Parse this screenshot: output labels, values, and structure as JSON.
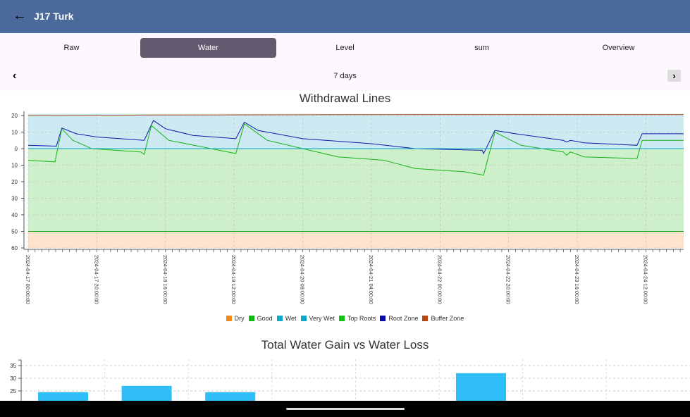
{
  "appbar": {
    "title": "J17 Turk",
    "back_icon": "arrow-left-icon"
  },
  "tabs": [
    {
      "label": "Raw",
      "active": false
    },
    {
      "label": "Water",
      "active": true
    },
    {
      "label": "Level",
      "active": false
    },
    {
      "label": "sum",
      "active": false
    },
    {
      "label": "Overview",
      "active": false
    }
  ],
  "range": {
    "label": "7 days",
    "prev_icon": "chevron-left-icon",
    "next_icon": "chevron-right-icon"
  },
  "chart_data": [
    {
      "type": "line",
      "title": "Withdrawal Lines",
      "x_unit": "hours since 2024-04-17 00:00:00",
      "xlim": [
        0,
        191
      ],
      "ylim": [
        -60,
        21
      ],
      "y_ticks": [
        20,
        10,
        0,
        -10,
        -20,
        -30,
        -40,
        -50,
        -60
      ],
      "y_tick_labels": [
        "20",
        "10",
        "0",
        "10",
        "20",
        "30",
        "40",
        "50",
        "60"
      ],
      "x_tick_labels": [
        "2024-04-17 00:00:00",
        "2024-04-17 20:00:00",
        "2024-04-18 16:00:00",
        "2024-04-19 12:00:00",
        "2024-04-20 08:00:00",
        "2024-04-21 04:00:00",
        "2024-04-22 00:00:00",
        "2024-04-22 20:00:00",
        "2024-04-23 16:00:00",
        "2024-04-24 12:00:00"
      ],
      "x_tick_hours": [
        0,
        20,
        40,
        60,
        80,
        100,
        120,
        140,
        160,
        180
      ],
      "zones": [
        {
          "name": "Dry",
          "from": -60,
          "to": -50,
          "color": "#fde3cc"
        },
        {
          "name": "Good",
          "from": -50,
          "to": 0,
          "color": "#cdf0cb"
        },
        {
          "name": "Wet",
          "from": 0,
          "to": 21,
          "color": "#cdeaf2"
        }
      ],
      "series": [
        {
          "name": "Buffer Zone",
          "color": "#b5502a",
          "points": [
            [
              0,
              20
            ],
            [
              40,
              20.3
            ],
            [
              80,
              20.5
            ],
            [
              120,
              20.6
            ],
            [
              191,
              20.6
            ]
          ]
        },
        {
          "name": "Root Zone",
          "color": "#0a1aa8",
          "points": [
            [
              0,
              2
            ],
            [
              8.2,
              1.5
            ],
            [
              9.8,
              12.5
            ],
            [
              14,
              9
            ],
            [
              20,
              7
            ],
            [
              33.8,
              5
            ],
            [
              36.5,
              17
            ],
            [
              40,
              12
            ],
            [
              48,
              8
            ],
            [
              60.5,
              6
            ],
            [
              63,
              16
            ],
            [
              67,
              11
            ],
            [
              80,
              6
            ],
            [
              100,
              3
            ],
            [
              112.8,
              0
            ],
            [
              132.3,
              -1
            ],
            [
              132.7,
              -3
            ],
            [
              136,
              11
            ],
            [
              142,
              9
            ],
            [
              155.9,
              5
            ],
            [
              156.9,
              4
            ],
            [
              158,
              5
            ],
            [
              162,
              3.5
            ],
            [
              177.4,
              2
            ],
            [
              178.9,
              9
            ],
            [
              191,
              9
            ]
          ]
        },
        {
          "name": "Top Roots",
          "color": "#15b415",
          "points": [
            [
              0,
              -7
            ],
            [
              7.8,
              -8
            ],
            [
              9.8,
              12
            ],
            [
              13,
              5
            ],
            [
              18.5,
              0
            ],
            [
              32.8,
              -2
            ],
            [
              33.8,
              -3.5
            ],
            [
              35.9,
              14
            ],
            [
              41,
              5
            ],
            [
              53.3,
              0
            ],
            [
              60.5,
              -3
            ],
            [
              63,
              15
            ],
            [
              69.7,
              5
            ],
            [
              80,
              0
            ],
            [
              90.3,
              -5
            ],
            [
              103.6,
              -7
            ],
            [
              112.8,
              -12
            ],
            [
              127.2,
              -14
            ],
            [
              132.7,
              -16
            ],
            [
              136,
              10
            ],
            [
              143.6,
              2
            ],
            [
              155.9,
              -2
            ],
            [
              156.9,
              -4
            ],
            [
              158,
              -2
            ],
            [
              162,
              -5
            ],
            [
              177.4,
              -6
            ],
            [
              178.9,
              5
            ],
            [
              191,
              5
            ]
          ]
        },
        {
          "name": "Very Wet",
          "color": "#0aa0c8",
          "points": [
            [
              0,
              0
            ],
            [
              191,
              0
            ]
          ]
        },
        {
          "name": "Good",
          "color": "#15a015",
          "points": [
            [
              0,
              -50
            ],
            [
              191,
              -50
            ]
          ]
        }
      ],
      "legend": [
        {
          "label": "Dry",
          "color": "#f08a1a"
        },
        {
          "label": "Good",
          "color": "#12b812"
        },
        {
          "label": "Wet",
          "color": "#10a6c8"
        },
        {
          "label": "Very Wet",
          "color": "#10a6c8"
        },
        {
          "label": "Top Roots",
          "color": "#12c012"
        },
        {
          "label": "Root Zone",
          "color": "#0a0aaa"
        },
        {
          "label": "Buffer Zone",
          "color": "#b8460e"
        }
      ],
      "legend_position": "bottom",
      "grid": true
    },
    {
      "type": "bar",
      "title": "Total Water Gain vs Water Loss",
      "values": [
        24.5,
        27,
        24.5,
        null,
        null,
        32,
        null,
        null
      ],
      "y_ticks": [
        25,
        30,
        35
      ],
      "y_tick_labels": [
        "25",
        "30",
        "35"
      ],
      "ylim_visible": [
        21,
        37
      ],
      "color": "#2fbdf7",
      "grid": true
    }
  ]
}
